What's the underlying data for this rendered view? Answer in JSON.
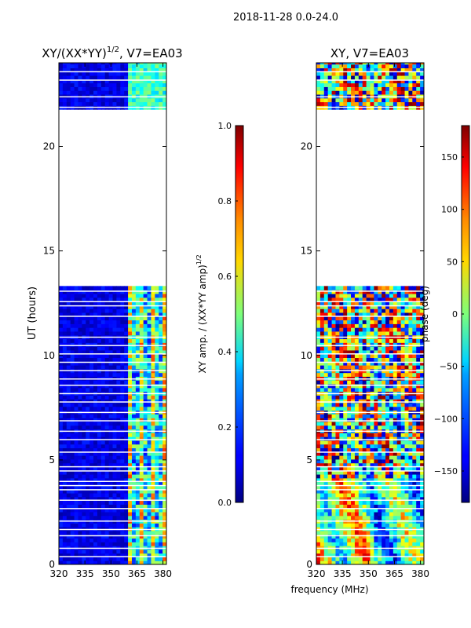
{
  "figure_title": "2018-11-28 0.0-24.0",
  "shared_xlabel": "frequency (MHz)",
  "chart_data": [
    {
      "type": "heatmap",
      "title_main": "XY/(XX*YY)",
      "title_sup": "1/2",
      "title_tail": ", V7=EA03",
      "ylabel": "UT (hours)",
      "xlim": [
        320,
        382
      ],
      "ylim": [
        0,
        24
      ],
      "x_ticks": [
        320,
        335,
        350,
        365,
        380
      ],
      "y_ticks": [
        0,
        5,
        10,
        15,
        20
      ],
      "data_gap_hours": [
        13.3,
        21.6
      ],
      "colormap": "jet",
      "colorbar": {
        "label_main": "XY amp. / (XX*YY amp)",
        "label_sup": "1/2",
        "range": [
          0.0,
          1.0
        ],
        "ticks": [
          "0.0",
          "0.2",
          "0.4",
          "0.6",
          "0.8",
          "1.0"
        ]
      }
    },
    {
      "type": "heatmap",
      "title_main": "XY, V7=EA03",
      "title_sup": "",
      "title_tail": "",
      "ylabel": "",
      "xlim": [
        320,
        382
      ],
      "ylim": [
        0,
        24
      ],
      "x_ticks": [
        320,
        335,
        350,
        365,
        380
      ],
      "y_ticks": [
        0,
        5,
        10,
        15,
        20
      ],
      "data_gap_hours": [
        13.3,
        21.6
      ],
      "colormap": "jet",
      "colorbar": {
        "label_main": "phase (deg)",
        "label_sup": "",
        "range": [
          -180,
          180
        ],
        "ticks": [
          "−150",
          "−100",
          "−50",
          "0",
          "50",
          "100",
          "150"
        ]
      }
    }
  ],
  "colors": {
    "gap": "#ffffff",
    "axes": "#000000"
  }
}
